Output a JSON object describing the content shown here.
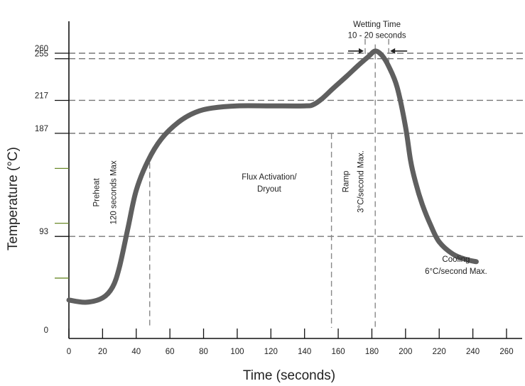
{
  "chart_data": {
    "type": "line",
    "xlabel": "Time (seconds)",
    "ylabel": "Temperature (°C)",
    "xlim": [
      0,
      260
    ],
    "ylim": [
      0,
      260
    ],
    "x_ticks": [
      {
        "value": 0,
        "label": "0"
      },
      {
        "value": 20,
        "label": "20"
      },
      {
        "value": 40,
        "label": "40"
      },
      {
        "value": 60,
        "label": "60"
      },
      {
        "value": 80,
        "label": "80"
      },
      {
        "value": 100,
        "label": "100"
      },
      {
        "value": 120,
        "label": "120"
      },
      {
        "value": 140,
        "label": "140"
      },
      {
        "value": 160,
        "label": "160"
      },
      {
        "value": 180,
        "label": "180"
      },
      {
        "value": 200,
        "label": "200"
      },
      {
        "value": 220,
        "label": "220"
      },
      {
        "value": 240,
        "label": "240"
      },
      {
        "value": 260,
        "label": "260"
      }
    ],
    "y_ticks": [
      {
        "value": 0,
        "label": "0"
      },
      {
        "value": 93,
        "label": "93"
      },
      {
        "value": 187,
        "label": "187"
      },
      {
        "value": 217,
        "label": "217"
      },
      {
        "value": 255,
        "label": "255"
      },
      {
        "value": 260,
        "label": "260"
      }
    ],
    "y_minor_ticks": [
      55,
      105,
      155
    ],
    "reference_lines_y": [
      260,
      255,
      217,
      187,
      93
    ],
    "reference_lines_x": [
      48,
      156,
      176,
      182,
      190
    ],
    "series": [
      {
        "color": "#5f5f5f",
        "x": [
          0,
          10,
          20,
          26,
          30,
          35,
          40,
          47,
          55,
          65,
          75,
          85,
          100,
          120,
          140,
          145,
          150,
          157,
          165,
          172,
          178,
          182,
          186,
          190,
          195,
          200,
          203,
          206,
          210,
          215,
          220,
          228,
          236,
          242
        ],
        "y": [
          35,
          33,
          37,
          47,
          65,
          100,
          135,
          162,
          182,
          197,
          206,
          210,
          212,
          212,
          212,
          213,
          218,
          228,
          239,
          249,
          257,
          262,
          258,
          248,
          229,
          193,
          162,
          142,
          122,
          103,
          88,
          77,
          72,
          70
        ]
      }
    ],
    "annotations": [
      {
        "id": "preheat",
        "text": "Preheat",
        "x": 18,
        "y": 133,
        "rotate": -90
      },
      {
        "id": "preheat_max",
        "text": "120 seconds Max",
        "x": 28,
        "y": 133,
        "rotate": -90
      },
      {
        "id": "flux_1",
        "text": "Flux Activation/",
        "x": 119,
        "y": 145,
        "rotate": 0
      },
      {
        "id": "flux_2",
        "text": "Dryout",
        "x": 119,
        "y": 134,
        "rotate": 0
      },
      {
        "id": "ramp",
        "text": "Ramp",
        "x": 166,
        "y": 143,
        "rotate": -90
      },
      {
        "id": "ramp_max",
        "text": "3°C/second Max.",
        "x": 175,
        "y": 143,
        "rotate": -90
      },
      {
        "id": "cooling",
        "text": "Cooling",
        "x": 230,
        "y": 70,
        "rotate": 0
      },
      {
        "id": "cooling_max",
        "text": "6°C/second Max.",
        "x": 230,
        "y": 59,
        "rotate": 0
      },
      {
        "id": "wetting_time",
        "text": "Wetting Time",
        "x": 183,
        "y": 284,
        "rotate": 0
      },
      {
        "id": "wetting_range",
        "text": "10 - 20 seconds",
        "x": 183,
        "y": 274,
        "rotate": 0
      }
    ]
  }
}
